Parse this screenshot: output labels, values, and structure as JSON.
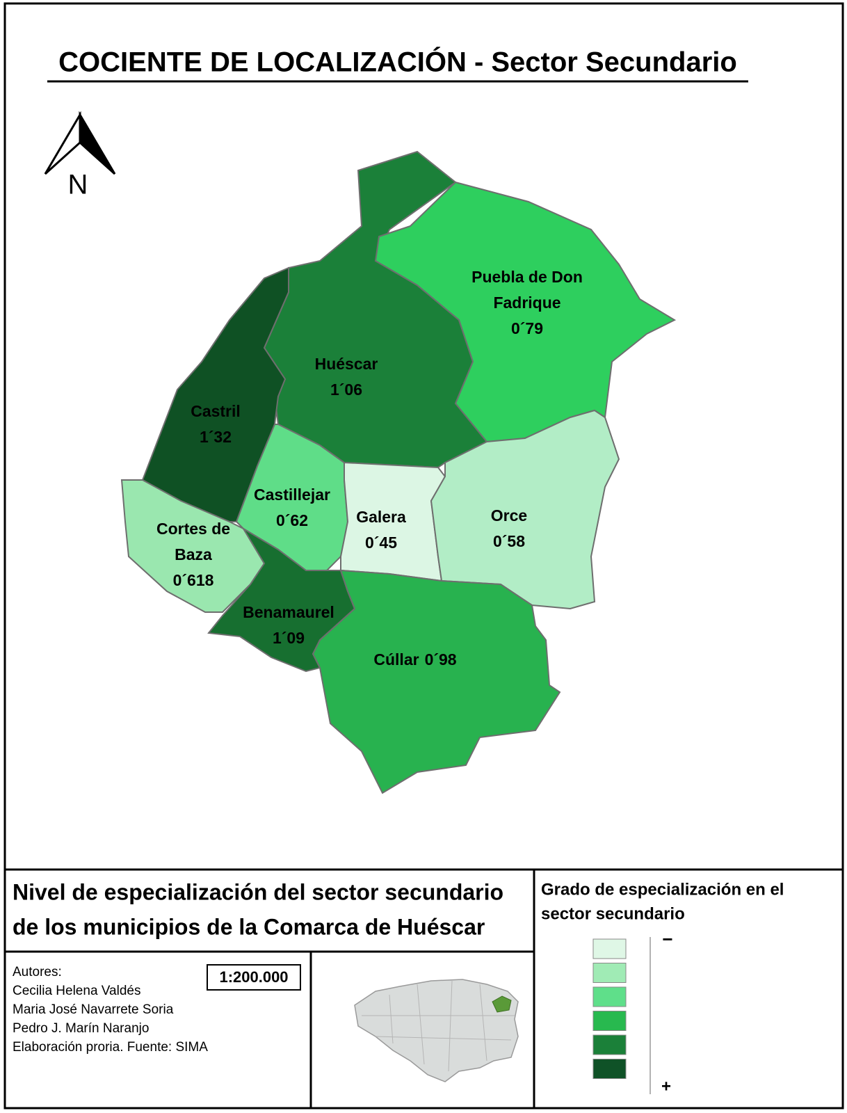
{
  "header": {
    "title": "COCIENTE DE LOCALIZACIÓN - Sector Secundario"
  },
  "north_arrow": {
    "label": "N"
  },
  "municipalities": [
    {
      "name_lines": [
        "Huéscar"
      ],
      "value": "1´06",
      "color": "#1b8039"
    },
    {
      "name_lines": [
        "Puebla de Don",
        "Fadrique"
      ],
      "value": "0´79",
      "color": "#2ecf5e"
    },
    {
      "name_lines": [
        "Castril"
      ],
      "value": "1´32",
      "color": "#0f5124"
    },
    {
      "name_lines": [
        "Castillejar"
      ],
      "value": "0´62",
      "color": "#5fdd88"
    },
    {
      "name_lines": [
        "Galera"
      ],
      "value": "0´45",
      "color": "#dcf6e4"
    },
    {
      "name_lines": [
        "Orce"
      ],
      "value": "0´58",
      "color": "#b2edc6"
    },
    {
      "name_lines": [
        "Cortes de",
        "Baza"
      ],
      "value": "0´618",
      "color": "#9ae7af"
    },
    {
      "name_lines": [
        "Benamaurel"
      ],
      "value": "1´09",
      "color": "#176f30"
    },
    {
      "name_lines": [
        "Cúllar"
      ],
      "value": "0´98",
      "color": "#28b24f"
    }
  ],
  "description": {
    "lines": [
      "Nivel de especialización del sector secundario",
      "de los municipios de la Comarca de Huéscar"
    ]
  },
  "authors": {
    "lines": [
      "Autores:",
      "Cecilia Helena Valdés",
      "Maria José Navarrete Soria",
      "Pedro J. Marín Naranjo",
      "Elaboración proria. Fuente: SIMA"
    ]
  },
  "scale": "1:200.000",
  "legend": {
    "title_lines": [
      "Grado de especialización en el",
      "sector secundario"
    ],
    "colors": [
      "#dff7e6",
      "#a0ebb5",
      "#5fdf8a",
      "#28b94f",
      "#1b8039",
      "#0f5227"
    ],
    "min_label": "−",
    "max_label": "+"
  }
}
